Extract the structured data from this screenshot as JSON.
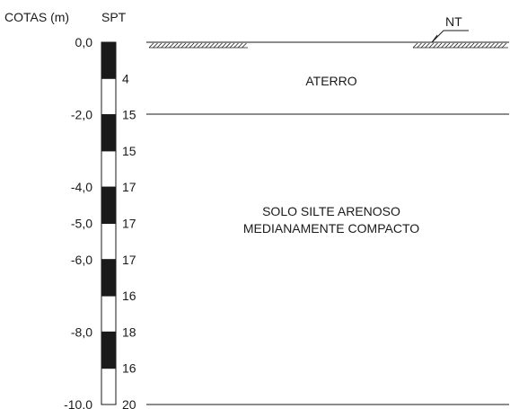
{
  "headers": {
    "elevation": "COTAS (m)",
    "spt": "SPT"
  },
  "water_table_label": "NT",
  "elevation_labels": [
    {
      "text": "0,0",
      "depth_m": 0.0
    },
    {
      "text": "-2,0",
      "depth_m": 2.0
    },
    {
      "text": "-4,0",
      "depth_m": 4.0
    },
    {
      "text": "-5,0",
      "depth_m": 5.0
    },
    {
      "text": "-6,0",
      "depth_m": 6.0
    },
    {
      "text": "-8,0",
      "depth_m": 8.0
    },
    {
      "text": "-10,0",
      "depth_m": 10.0
    }
  ],
  "spt_values": [
    {
      "value": "4",
      "depth_m": 1
    },
    {
      "value": "15",
      "depth_m": 2
    },
    {
      "value": "15",
      "depth_m": 3
    },
    {
      "value": "17",
      "depth_m": 4
    },
    {
      "value": "17",
      "depth_m": 5
    },
    {
      "value": "17",
      "depth_m": 6
    },
    {
      "value": "16",
      "depth_m": 7
    },
    {
      "value": "18",
      "depth_m": 8
    },
    {
      "value": "16",
      "depth_m": 9
    },
    {
      "value": "20",
      "depth_m": 10
    }
  ],
  "column_segments": [
    {
      "from_m": 0,
      "to_m": 1,
      "fill": "black"
    },
    {
      "from_m": 1,
      "to_m": 2,
      "fill": "white"
    },
    {
      "from_m": 2,
      "to_m": 3,
      "fill": "black"
    },
    {
      "from_m": 3,
      "to_m": 4,
      "fill": "white"
    },
    {
      "from_m": 4,
      "to_m": 5,
      "fill": "black"
    },
    {
      "from_m": 5,
      "to_m": 6,
      "fill": "white"
    },
    {
      "from_m": 6,
      "to_m": 7,
      "fill": "black"
    },
    {
      "from_m": 7,
      "to_m": 8,
      "fill": "white"
    },
    {
      "from_m": 8,
      "to_m": 9,
      "fill": "black"
    },
    {
      "from_m": 9,
      "to_m": 10,
      "fill": "white"
    }
  ],
  "layers": [
    {
      "name_lines": [
        "ATERRO"
      ],
      "from_m": 0,
      "to_m": 2
    },
    {
      "name_lines": [
        "SOLO SILTE ARENOSO",
        "MEDIANAMENTE COMPACTO"
      ],
      "from_m": 2,
      "to_m": 10
    }
  ],
  "colors": {
    "ink": "#1a1a1a",
    "paper": "#ffffff"
  }
}
